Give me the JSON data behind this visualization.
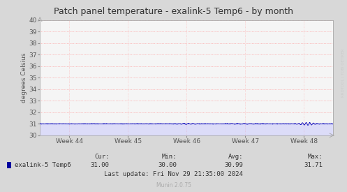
{
  "title": "Patch panel temperature - exalink-5 Temp6 - by month",
  "ylabel": "degrees Celsius",
  "ylim": [
    30,
    40
  ],
  "yticks": [
    30,
    31,
    32,
    33,
    34,
    35,
    36,
    37,
    38,
    39,
    40
  ],
  "xlim": [
    0,
    5
  ],
  "xtick_positions": [
    0.5,
    1.5,
    2.5,
    3.5,
    4.5
  ],
  "xtick_labels": [
    "Week 44",
    "Week 45",
    "Week 46",
    "Week 47",
    "Week 48"
  ],
  "line_color": "#0000bb",
  "line_color_fill": "#b0b0ff",
  "bg_color": "#d8d8d8",
  "plot_bg_color": "#f5f5f5",
  "grid_color_h": "#ff8080",
  "grid_color_v": "#ff9999",
  "watermark": "RRDTOOL / TOBI OETIKER",
  "legend_label": "exalink-5 Temp6",
  "legend_color": "#00009f",
  "cur": "31.00",
  "min": "30.00",
  "avg": "30.99",
  "max": "31.71",
  "last_update": "Last update: Fri Nov 29 21:35:00 2024",
  "munin_version": "Munin 2.0.75",
  "title_fontsize": 9,
  "axis_fontsize": 6.5,
  "label_fontsize": 6.5
}
